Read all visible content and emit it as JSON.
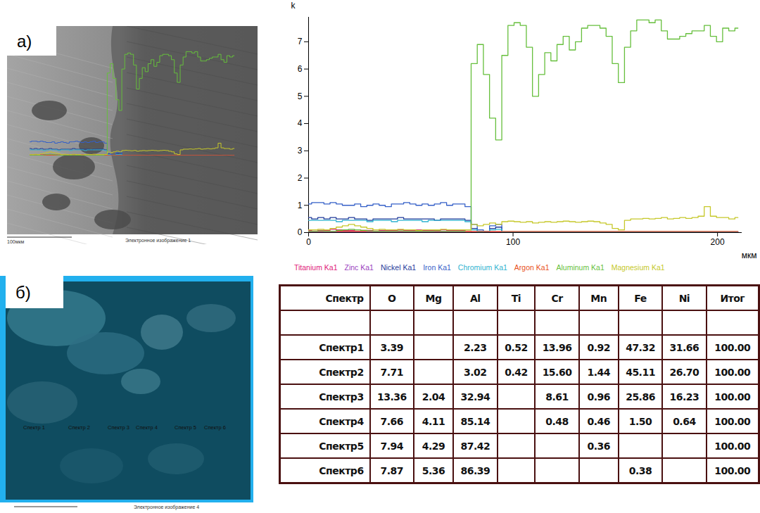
{
  "panel_a": {
    "label": "а)",
    "image_caption": "Электронное изображение 1",
    "scale_bar": "100мкм"
  },
  "chart_data": {
    "type": "line",
    "y_label": "k",
    "x_label": "мкм",
    "xlim": [
      0,
      212
    ],
    "xticks": [
      0,
      100,
      200
    ],
    "ylim": [
      0,
      7.9
    ],
    "yticks": [
      0,
      1,
      2,
      3,
      4,
      5,
      6,
      7
    ],
    "grid": false,
    "legend": "bottom",
    "x": [
      0,
      3,
      6,
      9,
      12,
      15,
      18,
      21,
      24,
      27,
      30,
      33,
      36,
      39,
      42,
      45,
      48,
      51,
      54,
      57,
      60,
      63,
      66,
      69,
      72,
      75,
      78,
      81,
      84,
      87,
      90,
      93,
      96,
      99,
      102,
      105,
      108,
      111,
      114,
      117,
      120,
      123,
      126,
      129,
      132,
      135,
      138,
      141,
      144,
      147,
      150,
      153,
      156,
      159,
      162,
      165,
      168,
      171,
      174,
      177,
      180,
      183,
      186,
      189,
      192,
      195,
      198,
      201,
      204,
      207,
      210
    ],
    "series": [
      {
        "name": "Titanium Ka1",
        "color": "#e0207a",
        "values": [
          0.08,
          0.1,
          0.08,
          0.08,
          0.12,
          0.1,
          0.08,
          0.08,
          0.1,
          0.08,
          0.08,
          0.1,
          0.08,
          0.08,
          0.08,
          0.1,
          0.08,
          0.08,
          0.1,
          0.08,
          0.08,
          0.08,
          0.1,
          0.08,
          0.08,
          0.08,
          0.05,
          0.02,
          0.02,
          0.02,
          0.02,
          0.02,
          0.02,
          0.02,
          0.02,
          0.02,
          0.02,
          0.02,
          0.02,
          0.02,
          0.02,
          0.02,
          0.02,
          0.02,
          0.02,
          0.02,
          0.02,
          0.02,
          0.02,
          0.02,
          0.02,
          0.02,
          0.02,
          0.02,
          0.02,
          0.02,
          0.02,
          0.02,
          0.02,
          0.02,
          0.02,
          0.02,
          0.02,
          0.02,
          0.02,
          0.02,
          0.02,
          0.02,
          0.02,
          0.02,
          0.02
        ]
      },
      {
        "name": "Zinc Ka1",
        "color": "#9b3fc0",
        "values": [
          0.03,
          0.03,
          0.03,
          0.03,
          0.03,
          0.03,
          0.03,
          0.03,
          0.03,
          0.03,
          0.03,
          0.03,
          0.03,
          0.03,
          0.03,
          0.03,
          0.03,
          0.03,
          0.03,
          0.03,
          0.03,
          0.03,
          0.03,
          0.03,
          0.03,
          0.03,
          0.01,
          0.01,
          0.01,
          0.01,
          0.01,
          0.01,
          0.01,
          0.01,
          0.01,
          0.01,
          0.01,
          0.01,
          0.01,
          0.01,
          0.01,
          0.01,
          0.01,
          0.01,
          0.01,
          0.01,
          0.01,
          0.01,
          0.01,
          0.01,
          0.01,
          0.01,
          0.01,
          0.01,
          0.01,
          0.01,
          0.01,
          0.01,
          0.01,
          0.01,
          0.01,
          0.01,
          0.01,
          0.01,
          0.01,
          0.01,
          0.01,
          0.01,
          0.01,
          0.01,
          0.01
        ]
      },
      {
        "name": "Nickel Ka1",
        "color": "#1f3a9a",
        "values": [
          0.55,
          0.5,
          0.55,
          0.5,
          0.55,
          0.5,
          0.5,
          0.55,
          0.5,
          0.5,
          0.45,
          0.5,
          0.5,
          0.5,
          0.5,
          0.55,
          0.5,
          0.5,
          0.5,
          0.5,
          0.5,
          0.45,
          0.5,
          0.5,
          0.5,
          0.5,
          0.45,
          0.15,
          0.05,
          0.05,
          0.15,
          0.2,
          0.01,
          0.01,
          0.01,
          0.01,
          0.01,
          0.01,
          0.01,
          0.01,
          0.01,
          0.01,
          0.01,
          0.01,
          0.01,
          0.01,
          0.01,
          0.01,
          0.01,
          0.01,
          0.01,
          0.01,
          0.01,
          0.01,
          0.01,
          0.01,
          0.01,
          0.01,
          0.01,
          0.01,
          0.01,
          0.01,
          0.01,
          0.01,
          0.01,
          0.01,
          0.01,
          0.01,
          0.01,
          0.01,
          0.01
        ]
      },
      {
        "name": "Iron Ka1",
        "color": "#3560c8",
        "values": [
          1.05,
          1.1,
          1.1,
          1.05,
          1.1,
          1.05,
          1,
          1,
          1.05,
          0.95,
          1,
          1.05,
          1,
          0.95,
          1.05,
          1.05,
          1.1,
          1.05,
          1,
          1.05,
          1,
          1.05,
          1.1,
          1,
          1.05,
          1.05,
          0.95,
          0.3,
          0.1,
          0.05,
          0.25,
          0.3,
          0.02,
          0.02,
          0.02,
          0.02,
          0.02,
          0.02,
          0.02,
          0.02,
          0.02,
          0.02,
          0.02,
          0.02,
          0.02,
          0.02,
          0.02,
          0.02,
          0.02,
          0.02,
          0.02,
          0.02,
          0.02,
          0.02,
          0.02,
          0.02,
          0.02,
          0.02,
          0.02,
          0.02,
          0.02,
          0.02,
          0.02,
          0.02,
          0.02,
          0.02,
          0.02,
          0.02,
          0.02,
          0.02,
          0.02
        ]
      },
      {
        "name": "Chromium Ka1",
        "color": "#2fb3d0",
        "values": [
          0.45,
          0.45,
          0.45,
          0.45,
          0.45,
          0.4,
          0.45,
          0.45,
          0.45,
          0.45,
          0.4,
          0.45,
          0.45,
          0.45,
          0.4,
          0.45,
          0.45,
          0.45,
          0.45,
          0.4,
          0.45,
          0.45,
          0.45,
          0.45,
          0.45,
          0.45,
          0.4,
          0.1,
          0.03,
          0.05,
          0.1,
          0.12,
          0.01,
          0.01,
          0.01,
          0.01,
          0.01,
          0.01,
          0.01,
          0.01,
          0.01,
          0.01,
          0.01,
          0.01,
          0.01,
          0.01,
          0.01,
          0.01,
          0.01,
          0.01,
          0.01,
          0.01,
          0.01,
          0.01,
          0.01,
          0.01,
          0.01,
          0.01,
          0.01,
          0.01,
          0.01,
          0.01,
          0.01,
          0.01,
          0.01,
          0.01,
          0.01,
          0.01,
          0.01,
          0.01,
          0.01
        ]
      },
      {
        "name": "Argon Ka1",
        "color": "#e8501a",
        "values": [
          0.05,
          0.05,
          0.05,
          0.05,
          0.05,
          0.05,
          0.05,
          0.05,
          0.05,
          0.05,
          0.05,
          0.05,
          0.05,
          0.05,
          0.05,
          0.05,
          0.05,
          0.05,
          0.05,
          0.05,
          0.05,
          0.05,
          0.05,
          0.05,
          0.05,
          0.05,
          0.04,
          0.04,
          0.04,
          0.04,
          0.04,
          0.04,
          0.04,
          0.04,
          0.04,
          0.04,
          0.04,
          0.04,
          0.04,
          0.04,
          0.04,
          0.04,
          0.04,
          0.04,
          0.04,
          0.04,
          0.04,
          0.04,
          0.04,
          0.04,
          0.04,
          0.04,
          0.04,
          0.04,
          0.04,
          0.04,
          0.04,
          0.04,
          0.04,
          0.04,
          0.04,
          0.04,
          0.04,
          0.04,
          0.04,
          0.04,
          0.04,
          0.04,
          0.04,
          0.04,
          0.04
        ]
      },
      {
        "name": "Aluminum Ka1",
        "color": "#66bf3c",
        "values": [
          0.05,
          0.05,
          0.06,
          0.05,
          0.05,
          0.08,
          0.1,
          0.12,
          0.1,
          0.08,
          0.06,
          0.05,
          0.05,
          0.05,
          0.05,
          0.06,
          0.05,
          0.05,
          0.05,
          0.05,
          0.05,
          0.06,
          0.05,
          0.05,
          0.05,
          0.05,
          0.1,
          6.2,
          6.9,
          5.8,
          4.2,
          3.4,
          6.5,
          7.6,
          7.7,
          7.6,
          6.8,
          5.0,
          5.8,
          6.6,
          6.3,
          6.9,
          7.2,
          6.7,
          7.0,
          7.5,
          7.6,
          7.6,
          7.5,
          7.2,
          6.2,
          5.5,
          6.8,
          7.4,
          7.8,
          7.8,
          7.7,
          7.8,
          7.4,
          7.1,
          7.1,
          7.2,
          7.3,
          7.4,
          7.4,
          7.6,
          7.2,
          7.0,
          7.5,
          7.4,
          7.5
        ]
      },
      {
        "name": "Magnesium Ka1",
        "color": "#c6c82a",
        "values": [
          0.1,
          0.1,
          0.12,
          0.1,
          0.15,
          0.2,
          0.25,
          0.3,
          0.25,
          0.2,
          0.15,
          0.1,
          0.12,
          0.1,
          0.1,
          0.12,
          0.1,
          0.1,
          0.08,
          0.1,
          0.1,
          0.1,
          0.12,
          0.1,
          0.1,
          0.1,
          0.1,
          0.3,
          0.25,
          0.3,
          0.35,
          0.3,
          0.4,
          0.42,
          0.4,
          0.38,
          0.4,
          0.35,
          0.38,
          0.4,
          0.38,
          0.4,
          0.42,
          0.4,
          0.38,
          0.4,
          0.42,
          0.4,
          0.35,
          0.3,
          0.15,
          0.1,
          0.45,
          0.5,
          0.5,
          0.52,
          0.5,
          0.52,
          0.55,
          0.5,
          0.52,
          0.55,
          0.52,
          0.55,
          0.6,
          0.95,
          0.6,
          0.55,
          0.55,
          0.5,
          0.55
        ]
      }
    ]
  },
  "panel_b": {
    "label": "б)",
    "image_caption": "Электронное изображение 4",
    "spectrum_markers": [
      "Спектр 1",
      "Спектр 2",
      "Спектр 3",
      "Спектр 4",
      "Спектр 5",
      "Спектр 6"
    ],
    "table": {
      "columns": [
        "Спектр",
        "O",
        "Mg",
        "Al",
        "Ti",
        "Cr",
        "Mn",
        "Fe",
        "Ni",
        "Итог"
      ],
      "rows": [
        [
          null,
          null,
          null,
          null,
          null,
          null,
          null,
          null,
          null,
          null
        ],
        [
          "Спектр1",
          "3.39",
          null,
          "2.23",
          "0.52",
          "13.96",
          "0.92",
          "47.32",
          "31.66",
          "100.00"
        ],
        [
          "Спектр2",
          "7.71",
          null,
          "3.02",
          "0.42",
          "15.60",
          "1.44",
          "45.11",
          "26.70",
          "100.00"
        ],
        [
          "Спектр3",
          "13.36",
          "2.04",
          "32.94",
          null,
          "8.61",
          "0.96",
          "25.86",
          "16.23",
          "100.00"
        ],
        [
          "Спектр4",
          "7.66",
          "4.11",
          "85.14",
          null,
          "0.48",
          "0.46",
          "1.50",
          "0.64",
          "100.00"
        ],
        [
          "Спектр5",
          "7.94",
          "4.29",
          "87.42",
          null,
          null,
          "0.36",
          null,
          null,
          "100.00"
        ],
        [
          "Спектр6",
          "7.87",
          "5.36",
          "86.39",
          null,
          null,
          null,
          "0.38",
          null,
          "100.00"
        ]
      ]
    }
  }
}
